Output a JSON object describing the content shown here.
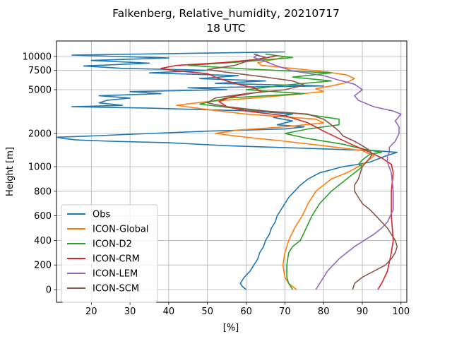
{
  "chart_data": {
    "type": "line",
    "title": "Falkenberg, Relative_humidity, 20210717",
    "subtitle": "18 UTC",
    "xlabel": "[%]",
    "ylabel": "Height [m]",
    "xlim": [
      11,
      101.5
    ],
    "xticks": [
      20,
      30,
      40,
      50,
      60,
      70,
      80,
      90,
      100
    ],
    "yticks_lower": [
      0,
      200,
      400,
      600,
      800,
      1000
    ],
    "yticks_upper": [
      1000,
      2000,
      5000,
      7500,
      10000
    ],
    "grid": true,
    "legend_position": "lower-left",
    "series": [
      {
        "name": "Obs",
        "color": "#1f77b4",
        "points": [
          [
            60,
            0
          ],
          [
            59,
            25
          ],
          [
            58.5,
            50
          ],
          [
            59.5,
            100
          ],
          [
            61,
            150
          ],
          [
            62,
            200
          ],
          [
            63,
            250
          ],
          [
            63.5,
            300
          ],
          [
            64.5,
            350
          ],
          [
            65,
            400
          ],
          [
            66,
            450
          ],
          [
            66.5,
            500
          ],
          [
            67.5,
            550
          ],
          [
            68,
            600
          ],
          [
            69,
            650
          ],
          [
            70,
            700
          ],
          [
            71,
            750
          ],
          [
            72.5,
            800
          ],
          [
            74,
            850
          ],
          [
            76,
            900
          ],
          [
            79,
            950
          ],
          [
            85,
            1000
          ],
          [
            89,
            1050
          ],
          [
            92,
            1100
          ],
          [
            96,
            1250
          ],
          [
            99,
            1350
          ],
          [
            93,
            1400
          ],
          [
            80,
            1450
          ],
          [
            55,
            1550
          ],
          [
            40,
            1650
          ],
          [
            25,
            1700
          ],
          [
            16,
            1750
          ],
          [
            13,
            1800
          ],
          [
            11,
            1850
          ],
          [
            20,
            1900
          ],
          [
            35,
            2000
          ],
          [
            50,
            2100
          ],
          [
            70,
            2200
          ],
          [
            75,
            2300
          ],
          [
            68,
            2400
          ],
          [
            72,
            2600
          ],
          [
            67,
            2800
          ],
          [
            72,
            3000
          ],
          [
            62,
            3200
          ],
          [
            35,
            3400
          ],
          [
            15,
            3500
          ],
          [
            28,
            3600
          ],
          [
            22,
            3800
          ],
          [
            24,
            4000
          ],
          [
            30,
            4200
          ],
          [
            22,
            4400
          ],
          [
            38,
            4600
          ],
          [
            30,
            4800
          ],
          [
            55,
            5000
          ],
          [
            45,
            5200
          ],
          [
            80,
            5400
          ],
          [
            52,
            5700
          ],
          [
            65,
            6000
          ],
          [
            48,
            6300
          ],
          [
            58,
            6700
          ],
          [
            35,
            7100
          ],
          [
            50,
            7500
          ],
          [
            28,
            7800
          ],
          [
            18,
            8200
          ],
          [
            35,
            8700
          ],
          [
            20,
            9200
          ],
          [
            40,
            9700
          ],
          [
            15,
            10300
          ],
          [
            70,
            11000
          ]
        ]
      },
      {
        "name": "ICON-Global",
        "color": "#ff7f0e",
        "points": [
          [
            73,
            0
          ],
          [
            71,
            50
          ],
          [
            70,
            100
          ],
          [
            69.5,
            200
          ],
          [
            70,
            300
          ],
          [
            71,
            400
          ],
          [
            72.5,
            500
          ],
          [
            74.5,
            600
          ],
          [
            76,
            700
          ],
          [
            78,
            800
          ],
          [
            82,
            900
          ],
          [
            86,
            950
          ],
          [
            89,
            1000
          ],
          [
            91,
            1100
          ],
          [
            93,
            1250
          ],
          [
            90,
            1400
          ],
          [
            80,
            1550
          ],
          [
            70,
            1700
          ],
          [
            60,
            1850
          ],
          [
            52,
            2000
          ],
          [
            58,
            2150
          ],
          [
            70,
            2300
          ],
          [
            80,
            2500
          ],
          [
            78,
            2700
          ],
          [
            60,
            3000
          ],
          [
            50,
            3300
          ],
          [
            42,
            3600
          ],
          [
            50,
            3900
          ],
          [
            62,
            4200
          ],
          [
            72,
            4500
          ],
          [
            80,
            4800
          ],
          [
            78,
            5100
          ],
          [
            82,
            5400
          ],
          [
            86,
            5800
          ],
          [
            88,
            6300
          ],
          [
            86,
            6800
          ],
          [
            80,
            7300
          ],
          [
            72,
            7800
          ],
          [
            64,
            8300
          ],
          [
            63,
            8800
          ],
          [
            68,
            9500
          ],
          [
            70,
            10000
          ]
        ]
      },
      {
        "name": "ICON-D2",
        "color": "#2ca02c",
        "points": [
          [
            72,
            0
          ],
          [
            71,
            50
          ],
          [
            70.5,
            100
          ],
          [
            70.5,
            200
          ],
          [
            71,
            300
          ],
          [
            72,
            350
          ],
          [
            74,
            400
          ],
          [
            75.5,
            500
          ],
          [
            77,
            600
          ],
          [
            79,
            700
          ],
          [
            82,
            800
          ],
          [
            86,
            900
          ],
          [
            90,
            1000
          ],
          [
            89,
            1050
          ],
          [
            90,
            1150
          ],
          [
            92,
            1300
          ],
          [
            95,
            1350
          ],
          [
            90,
            1450
          ],
          [
            85,
            1600
          ],
          [
            76,
            1800
          ],
          [
            70,
            2000
          ],
          [
            76,
            2200
          ],
          [
            84,
            2400
          ],
          [
            84,
            2700
          ],
          [
            75,
            3000
          ],
          [
            60,
            3300
          ],
          [
            48,
            3700
          ],
          [
            55,
            4200
          ],
          [
            75,
            4600
          ],
          [
            60,
            5000
          ],
          [
            70,
            5500
          ],
          [
            82,
            6000
          ],
          [
            72,
            6500
          ],
          [
            82,
            7100
          ],
          [
            60,
            7700
          ],
          [
            45,
            8300
          ],
          [
            60,
            9000
          ],
          [
            72,
            9800
          ],
          [
            65,
            10500
          ]
        ]
      },
      {
        "name": "ICON-CRM",
        "color": "#d62728",
        "points": [
          [
            94,
            0
          ],
          [
            95,
            50
          ],
          [
            96.5,
            150
          ],
          [
            97.5,
            300
          ],
          [
            98,
            400
          ],
          [
            97.5,
            600
          ],
          [
            97.5,
            800
          ],
          [
            98,
            950
          ],
          [
            97.5,
            1050
          ],
          [
            95,
            1200
          ],
          [
            92,
            1350
          ],
          [
            88,
            1550
          ],
          [
            84,
            1800
          ],
          [
            80,
            2100
          ],
          [
            76,
            2500
          ],
          [
            70,
            2900
          ],
          [
            60,
            3200
          ],
          [
            55,
            3500
          ],
          [
            53,
            3900
          ],
          [
            56,
            4300
          ],
          [
            64,
            4800
          ],
          [
            62,
            5200
          ],
          [
            58,
            5600
          ],
          [
            55,
            6000
          ],
          [
            52,
            6500
          ],
          [
            50,
            7000
          ],
          [
            42,
            7400
          ],
          [
            38,
            7800
          ],
          [
            42,
            8300
          ],
          [
            54,
            8800
          ],
          [
            64,
            9500
          ],
          [
            68,
            10200
          ]
        ]
      },
      {
        "name": "ICON-LEM",
        "color": "#9467bd",
        "points": [
          [
            78,
            0
          ],
          [
            79,
            50
          ],
          [
            80,
            100
          ],
          [
            81,
            150
          ],
          [
            82.5,
            200
          ],
          [
            84,
            250
          ],
          [
            86,
            300
          ],
          [
            88,
            350
          ],
          [
            90.5,
            400
          ],
          [
            93,
            450
          ],
          [
            95,
            500
          ],
          [
            96.5,
            550
          ],
          [
            98,
            650
          ],
          [
            98,
            800
          ],
          [
            97.5,
            950
          ],
          [
            96.5,
            1100
          ],
          [
            96.5,
            1250
          ],
          [
            97,
            1350
          ],
          [
            97,
            1500
          ],
          [
            98.5,
            1700
          ],
          [
            99.5,
            2000
          ],
          [
            99.5,
            2300
          ],
          [
            98.5,
            2600
          ],
          [
            100,
            3000
          ],
          [
            98,
            3200
          ],
          [
            93,
            3500
          ],
          [
            89,
            4000
          ],
          [
            88,
            4400
          ],
          [
            90,
            5000
          ],
          [
            88,
            5600
          ],
          [
            84,
            6100
          ],
          [
            80,
            6700
          ],
          [
            72,
            7400
          ],
          [
            68,
            8200
          ],
          [
            65,
            9000
          ],
          [
            62,
            9800
          ],
          [
            63,
            10500
          ]
        ]
      },
      {
        "name": "ICON-SCM",
        "color": "#8c564b",
        "points": [
          [
            87.5,
            0
          ],
          [
            88,
            50
          ],
          [
            90,
            100
          ],
          [
            93,
            150
          ],
          [
            96,
            200
          ],
          [
            97.5,
            250
          ],
          [
            98.5,
            300
          ],
          [
            99,
            350
          ],
          [
            98.5,
            400
          ],
          [
            97.5,
            450
          ],
          [
            96.5,
            500
          ],
          [
            95,
            550
          ],
          [
            93.5,
            600
          ],
          [
            92,
            650
          ],
          [
            90,
            700
          ],
          [
            89,
            750
          ],
          [
            88,
            800
          ],
          [
            88,
            850
          ],
          [
            89,
            900
          ],
          [
            90,
            1000
          ],
          [
            91,
            1100
          ],
          [
            92,
            1200
          ],
          [
            92.5,
            1300
          ],
          [
            92,
            1400
          ],
          [
            90,
            1550
          ],
          [
            88,
            1700
          ],
          [
            85,
            1900
          ],
          [
            84,
            2100
          ],
          [
            82,
            2400
          ],
          [
            80,
            2700
          ],
          [
            76,
            3000
          ],
          [
            65,
            3200
          ],
          [
            55,
            3500
          ],
          [
            50,
            3800
          ],
          [
            52,
            4200
          ],
          [
            60,
            4600
          ],
          [
            70,
            5000
          ],
          [
            75,
            5500
          ],
          [
            72,
            6000
          ],
          [
            65,
            6500
          ],
          [
            55,
            7200
          ],
          [
            50,
            7600
          ],
          [
            57,
            8300
          ],
          [
            60,
            9000
          ],
          [
            65,
            9800
          ],
          [
            62,
            10500
          ]
        ]
      }
    ]
  }
}
